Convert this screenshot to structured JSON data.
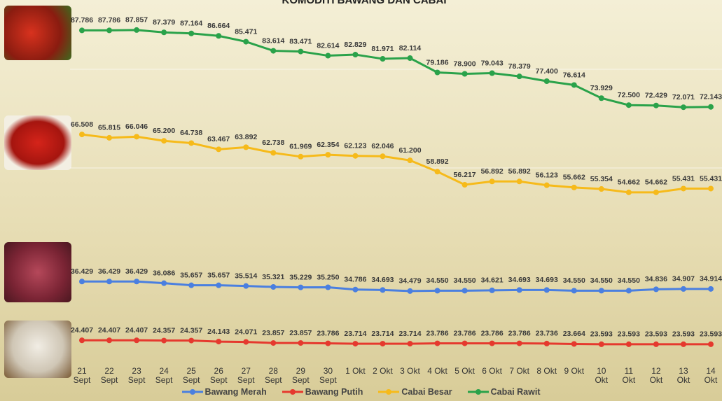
{
  "chart_data": {
    "type": "line",
    "title": "KOMODITI BAWANG DAN CABAI",
    "categories": [
      "21 Sept",
      "22 Sept",
      "23 Sept",
      "24 Sept",
      "25 Sept",
      "26 Sept",
      "27 Sept",
      "28 Sept",
      "29 Sept",
      "30 Sept",
      "1 Okt",
      "2 Okt",
      "3 Okt",
      "4 Okt",
      "5 Okt",
      "6 Okt",
      "7 Okt",
      "8 Okt",
      "9 Okt",
      "10 Okt",
      "11 Okt",
      "12 Okt",
      "13 Okt",
      "14 Okt"
    ],
    "ylim": [
      17,
      94
    ],
    "series": [
      {
        "name": "Bawang Merah",
        "color": "#4a7fe0",
        "values": [
          36.429,
          36.429,
          36.429,
          36.086,
          35.657,
          35.657,
          35.514,
          35.321,
          35.229,
          35.25,
          34.786,
          34.693,
          34.479,
          34.55,
          34.55,
          34.621,
          34.693,
          34.693,
          34.55,
          34.55,
          34.55,
          34.836,
          34.907,
          34.914
        ],
        "value_labels": [
          "36.429",
          "36.429",
          "36.429",
          "36.086",
          "35.657",
          "35.657",
          "35.514",
          "35.321",
          "35.229",
          "35.250",
          "34.786",
          "34.693",
          "34.479",
          "34.550",
          "34.550",
          "34.621",
          "34.693",
          "34.693",
          "34.550",
          "34.550",
          "34.550",
          "34.836",
          "34.907",
          "34.914"
        ]
      },
      {
        "name": "Bawang Putih",
        "color": "#e5392e",
        "values": [
          24.407,
          24.407,
          24.407,
          24.357,
          24.357,
          24.143,
          24.071,
          23.857,
          23.857,
          23.786,
          23.714,
          23.714,
          23.714,
          23.786,
          23.786,
          23.786,
          23.786,
          23.736,
          23.664,
          23.593,
          23.593,
          23.593,
          23.593,
          23.593
        ],
        "value_labels": [
          "24.407",
          "24.407",
          "24.407",
          "24.357",
          "24.357",
          "24.143",
          "24.071",
          "23.857",
          "23.857",
          "23.786",
          "23.714",
          "23.714",
          "23.714",
          "23.786",
          "23.786",
          "23.786",
          "23.786",
          "23.736",
          "23.664",
          "23.593",
          "23.593",
          "23.593",
          "23.593",
          "23.593"
        ]
      },
      {
        "name": "Cabai Besar",
        "color": "#f6ba1a",
        "values": [
          66.508,
          65.815,
          66.046,
          65.2,
          64.738,
          63.467,
          63.892,
          62.738,
          61.969,
          62.354,
          62.123,
          62.046,
          61.2,
          58.892,
          56.217,
          56.892,
          56.892,
          56.123,
          55.662,
          55.354,
          54.662,
          54.662,
          55.431,
          55.431
        ],
        "value_labels": [
          "66.508",
          "65.815",
          "66.046",
          "65.200",
          "64.738",
          "63.467",
          "63.892",
          "62.738",
          "61.969",
          "62.354",
          "62.123",
          "62.046",
          "61.200",
          "58.892",
          "56.217",
          "56.892",
          "56.892",
          "56.123",
          "55.662",
          "55.354",
          "54.662",
          "54.662",
          "55.431",
          "55.431"
        ]
      },
      {
        "name": "Cabai Rawit",
        "color": "#2aa24a",
        "values": [
          87.786,
          87.786,
          87.857,
          87.379,
          87.164,
          86.664,
          85.471,
          83.614,
          83.471,
          82.614,
          82.829,
          81.971,
          82.114,
          79.186,
          78.9,
          79.043,
          78.379,
          77.4,
          76.614,
          73.929,
          72.5,
          72.429,
          72.071,
          72.143
        ],
        "value_labels": [
          "87.786",
          "87.786",
          "87.857",
          "87.379",
          "87.164",
          "86.664",
          "85.471",
          "83.614",
          "83.471",
          "82.614",
          "82.829",
          "81.971",
          "82.114",
          "79.186",
          "78.900",
          "79.043",
          "78.379",
          "77.400",
          "76.614",
          "73.929",
          "72.500",
          "72.429",
          "72.071",
          "72.143"
        ]
      }
    ]
  }
}
